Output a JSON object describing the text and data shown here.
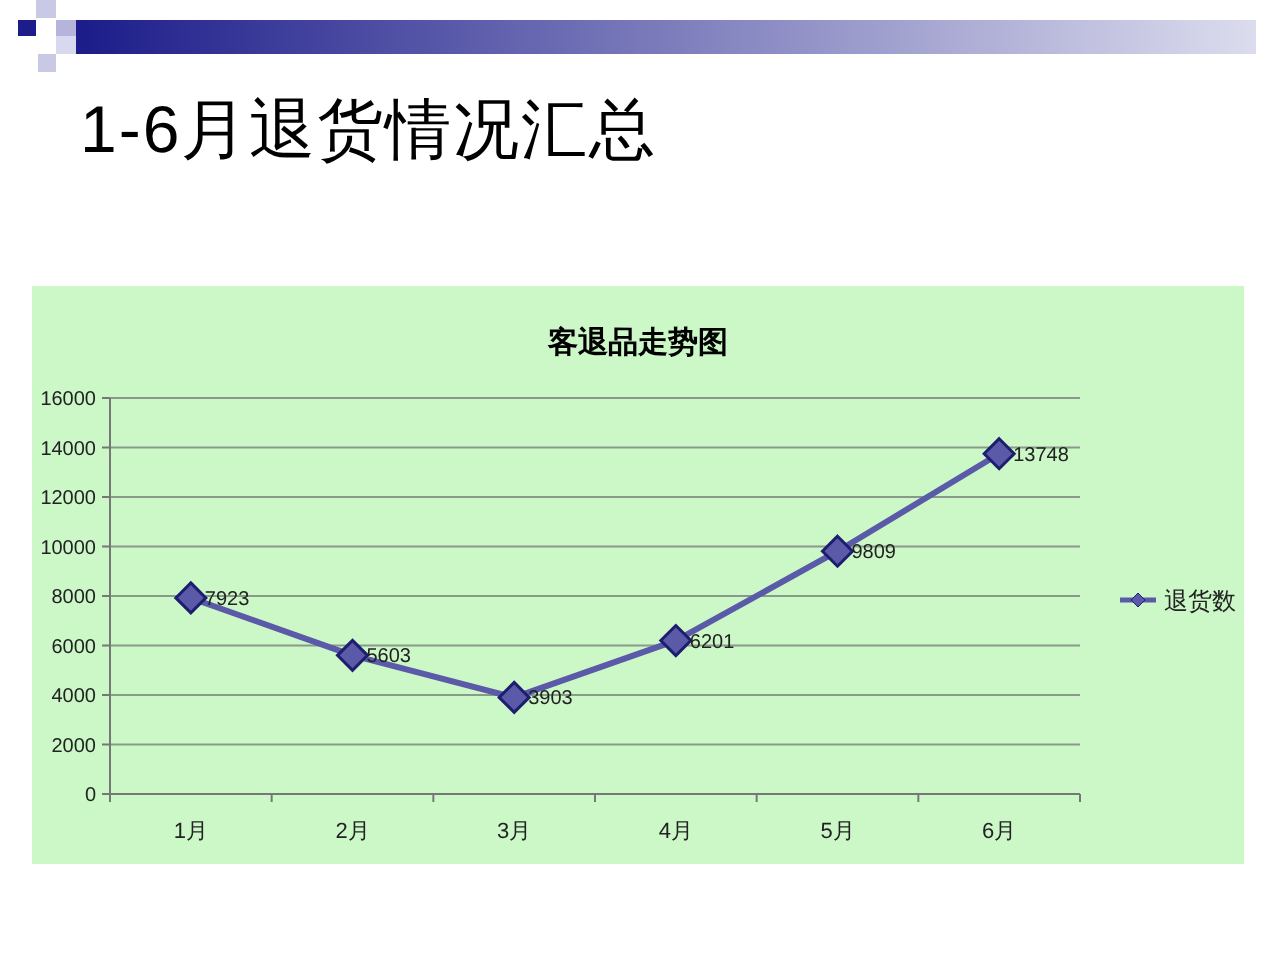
{
  "chart_data": {
    "type": "line",
    "title": "1-6月退货情况汇总",
    "subtitle": "客退品走势图",
    "categories": [
      "1月",
      "2月",
      "3月",
      "4月",
      "5月",
      "6月"
    ],
    "series": [
      {
        "name": "退货数",
        "color": "#5a5aa8",
        "values": [
          7923,
          5603,
          3903,
          6201,
          9809,
          13748
        ]
      }
    ],
    "ylim": [
      0,
      16000
    ],
    "yticks": [
      0,
      2000,
      4000,
      6000,
      8000,
      10000,
      12000,
      14000,
      16000
    ],
    "grid": "y",
    "legend": "right",
    "marker": "diamond",
    "line_style": "solid",
    "data_labels": true
  }
}
